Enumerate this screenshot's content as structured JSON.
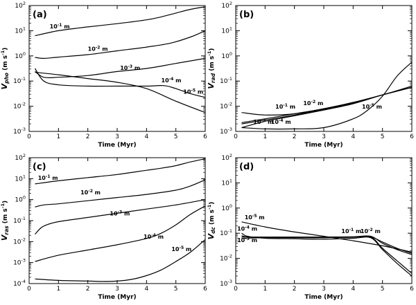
{
  "chart_data": [
    {
      "type": "line",
      "panel": "(a)",
      "ylabel_main": "V",
      "ylabel_sub": "pho",
      "ylabel_unit": "(m s",
      "ylabel_exp": "-1",
      "ylabel_close": ")",
      "xlabel": "Time (Myr)",
      "xlim": [
        0,
        6
      ],
      "ylim_log10": [
        -3,
        2
      ],
      "xticks": [
        "0",
        "1",
        "2",
        "3",
        "4",
        "5",
        "6"
      ],
      "yticks": [
        {
          "base": "10",
          "exp": "-3"
        },
        {
          "base": "10",
          "exp": "-2"
        },
        {
          "base": "10",
          "exp": "-1"
        },
        {
          "base": "10",
          "exp": "0"
        },
        {
          "base": "10",
          "exp": "1"
        },
        {
          "base": "10",
          "exp": "2"
        }
      ],
      "series": [
        {
          "name": "10^-1 m",
          "label_base": "10",
          "label_exp": "-1",
          "label_unit": "m",
          "label_at": [
            0.7,
            1.1
          ],
          "x": [
            0.2,
            1,
            2,
            3,
            4,
            4.5,
            5,
            5.5,
            6
          ],
          "y": [
            0.8,
            1.0,
            1.15,
            1.28,
            1.43,
            1.55,
            1.7,
            1.85,
            1.95
          ]
        },
        {
          "name": "10^-2 m",
          "label_base": "10",
          "label_exp": "-2",
          "label_unit": "m",
          "label_at": [
            2.0,
            0.2
          ],
          "x": [
            0.2,
            0.5,
            1,
            2,
            3,
            4,
            4.8,
            5.5,
            6
          ],
          "y": [
            -0.06,
            -0.1,
            -0.05,
            0.05,
            0.2,
            0.35,
            0.5,
            0.75,
            1.0
          ]
        },
        {
          "name": "10^-3 m",
          "label_base": "10",
          "label_exp": "-3",
          "label_unit": "m",
          "label_at": [
            3.1,
            -0.55
          ],
          "x": [
            0.2,
            0.5,
            1,
            2,
            3,
            4,
            5,
            6
          ],
          "y": [
            -0.62,
            -0.85,
            -0.85,
            -0.78,
            -0.62,
            -0.5,
            -0.3,
            -0.1
          ]
        },
        {
          "name": "10^-4 m",
          "label_base": "10",
          "label_exp": "-4",
          "label_unit": "m",
          "label_at": [
            4.5,
            -1.05
          ],
          "x": [
            0.2,
            0.5,
            1,
            2,
            3,
            4,
            4.6,
            5,
            5.5,
            6
          ],
          "y": [
            -0.5,
            -1.0,
            -1.15,
            -1.2,
            -1.2,
            -1.2,
            -1.18,
            -1.3,
            -1.5,
            -1.65
          ]
        },
        {
          "name": "10^-5 m",
          "label_base": "10",
          "label_exp": "-5",
          "label_unit": "m",
          "label_at": [
            5.25,
            -1.5
          ],
          "x": [
            0.2,
            1,
            2,
            3,
            4,
            5,
            6
          ],
          "y": [
            -0.65,
            -0.75,
            -0.9,
            -1.05,
            -1.3,
            -1.8,
            -2.25
          ]
        }
      ]
    },
    {
      "type": "line",
      "panel": "(b)",
      "ylabel_main": "V",
      "ylabel_sub": "rad",
      "ylabel_unit": "(m s",
      "ylabel_exp": "-1",
      "ylabel_close": ")",
      "xlabel": "Time (Myr)",
      "xlim": [
        0,
        6
      ],
      "ylim_log10": [
        -3,
        2
      ],
      "xticks": [
        "0",
        "1",
        "2",
        "3",
        "4",
        "5",
        "6"
      ],
      "yticks": [
        {
          "base": "10",
          "exp": "-3"
        },
        {
          "base": "10",
          "exp": "-2"
        },
        {
          "base": "10",
          "exp": "-1"
        },
        {
          "base": "10",
          "exp": "0"
        },
        {
          "base": "10",
          "exp": "1"
        },
        {
          "base": "10",
          "exp": "2"
        }
      ],
      "series": [
        {
          "name": "10^-1 m",
          "label_base": "10",
          "label_exp": "-1",
          "label_unit": "m",
          "label_at": [
            1.35,
            -2.1
          ],
          "x": [
            0.2,
            1,
            2,
            3,
            4,
            5,
            6
          ],
          "y": [
            -2.25,
            -2.35,
            -2.3,
            -2.1,
            -1.85,
            -1.55,
            -1.25
          ]
        },
        {
          "name": "10^-2 m",
          "label_base": "10",
          "label_exp": "-2",
          "label_unit": "m",
          "label_at": [
            2.3,
            -1.95
          ],
          "x": [
            0.2,
            1,
            2,
            3,
            4,
            5,
            6
          ],
          "y": [
            -2.65,
            -2.5,
            -2.3,
            -2.1,
            -1.85,
            -1.55,
            -1.2
          ]
        },
        {
          "name": "10^-3 m",
          "label_base": "10",
          "label_exp": "-3",
          "label_unit": "m",
          "label_at": [
            0.6,
            -2.7
          ],
          "x": [
            0.2,
            1,
            2,
            3,
            4,
            5,
            6
          ],
          "y": [
            -2.7,
            -2.55,
            -2.35,
            -2.12,
            -1.88,
            -1.55,
            -1.25
          ]
        },
        {
          "name": "10^-4 m",
          "label_base": "10",
          "label_exp": "-4",
          "label_unit": "m",
          "label_at": [
            1.2,
            -2.7
          ],
          "x": [
            0.2,
            1,
            2,
            3,
            4,
            5,
            6
          ],
          "y": [
            -2.85,
            -2.6,
            -2.38,
            -2.15,
            -1.9,
            -1.55,
            -1.25
          ]
        },
        {
          "name": "10^-5 m",
          "label_base": "10",
          "label_exp": "-5",
          "label_unit": "m",
          "label_at": [
            4.3,
            -2.1
          ],
          "x": [
            0.2,
            1,
            2,
            3,
            4,
            4.5,
            5,
            5.5,
            6
          ],
          "y": [
            -2.85,
            -2.9,
            -2.9,
            -2.85,
            -2.5,
            -2.15,
            -1.6,
            -0.8,
            -0.25
          ]
        }
      ]
    },
    {
      "type": "line",
      "panel": "(c)",
      "ylabel_main": "V",
      "ylabel_sub": "ras",
      "ylabel_unit": "(m s",
      "ylabel_exp": "-1",
      "ylabel_close": ")",
      "xlabel": "Time (Myr)",
      "xlim": [
        0,
        6
      ],
      "ylim_log10": [
        -4,
        2
      ],
      "xticks": [
        "0",
        "1",
        "2",
        "3",
        "4",
        "5",
        "6"
      ],
      "yticks": [
        {
          "base": "10",
          "exp": "-4"
        },
        {
          "base": "10",
          "exp": "-3"
        },
        {
          "base": "10",
          "exp": "-2"
        },
        {
          "base": "10",
          "exp": "-1"
        },
        {
          "base": "10",
          "exp": "0"
        },
        {
          "base": "10",
          "exp": "1"
        },
        {
          "base": "10",
          "exp": "2"
        }
      ],
      "series": [
        {
          "name": "10^-1 m",
          "label_base": "10",
          "label_exp": "-1",
          "label_unit": "m",
          "label_at": [
            0.3,
            0.95
          ],
          "x": [
            0.2,
            1,
            2,
            3,
            4,
            4.5,
            5,
            5.5,
            6
          ],
          "y": [
            0.75,
            0.9,
            1.05,
            1.2,
            1.4,
            1.5,
            1.62,
            1.8,
            1.95
          ]
        },
        {
          "name": "10^-2 m",
          "label_base": "10",
          "label_exp": "-2",
          "label_unit": "m",
          "label_at": [
            1.75,
            0.25
          ],
          "x": [
            0.2,
            0.5,
            1,
            2,
            3,
            4,
            5,
            5.5,
            6
          ],
          "y": [
            -0.35,
            -0.25,
            -0.2,
            -0.05,
            0.1,
            0.25,
            0.45,
            0.65,
            0.95
          ]
        },
        {
          "name": "10^-3 m",
          "label_base": "10",
          "label_exp": "-3",
          "label_unit": "m",
          "label_at": [
            2.75,
            -0.75
          ],
          "x": [
            0.2,
            0.4,
            0.6,
            1,
            2,
            3,
            4,
            5,
            6
          ],
          "y": [
            -1.65,
            -1.35,
            -1.2,
            -1.05,
            -0.85,
            -0.65,
            -0.45,
            -0.25,
            0.0
          ]
        },
        {
          "name": "10^-4 m",
          "label_base": "10",
          "label_exp": "-4",
          "label_unit": "m",
          "label_at": [
            3.9,
            -1.85
          ],
          "x": [
            0.2,
            1,
            2,
            3,
            4,
            4.5,
            5,
            5.5,
            6
          ],
          "y": [
            -2.95,
            -2.65,
            -2.4,
            -2.15,
            -1.85,
            -1.6,
            -1.2,
            -0.7,
            -0.3
          ]
        },
        {
          "name": "10^-5 m",
          "label_base": "10",
          "label_exp": "-5",
          "label_unit": "m",
          "label_at": [
            4.85,
            -2.45
          ],
          "x": [
            0.2,
            1,
            2,
            2.5,
            3,
            3.5,
            4,
            4.5,
            5,
            5.5,
            6
          ],
          "y": [
            -3.78,
            -3.85,
            -3.88,
            -3.9,
            -3.88,
            -3.8,
            -3.62,
            -3.35,
            -2.95,
            -2.5,
            -1.9
          ]
        }
      ]
    },
    {
      "type": "line",
      "panel": "(d)",
      "ylabel_main": "V",
      "ylabel_sub": "dc",
      "ylabel_unit": "(m s",
      "ylabel_exp": "-1",
      "ylabel_close": ")",
      "xlabel": "Time (Myr)",
      "xlim": [
        0,
        6
      ],
      "ylim_log10": [
        -3,
        2
      ],
      "xticks": [
        "0",
        "1",
        "2",
        "3",
        "4",
        "5",
        "6"
      ],
      "yticks": [
        {
          "base": "10",
          "exp": "-3"
        },
        {
          "base": "10",
          "exp": "-2"
        },
        {
          "base": "10",
          "exp": "-1"
        },
        {
          "base": "10",
          "exp": "0"
        },
        {
          "base": "10",
          "exp": "1"
        },
        {
          "base": "10",
          "exp": "2"
        }
      ],
      "series": [
        {
          "name": "10^-1 m",
          "label_base": "10",
          "label_exp": "-1",
          "label_unit": "m",
          "label_at": [
            3.6,
            -1.0
          ],
          "x": [
            0.2,
            1,
            2,
            3,
            4,
            4.6,
            5,
            5.5,
            6
          ],
          "y": [
            -1.15,
            -1.15,
            -1.15,
            -1.15,
            -1.15,
            -1.15,
            -1.35,
            -1.6,
            -1.8
          ]
        },
        {
          "name": "10^-2 m",
          "label_base": "10",
          "label_exp": "-2",
          "label_unit": "m",
          "label_at": [
            4.25,
            -1.0
          ],
          "x": [
            0.2,
            1,
            2,
            3,
            4,
            4.6,
            5,
            5.5,
            6
          ],
          "y": [
            -1.2,
            -1.18,
            -1.17,
            -1.16,
            -1.14,
            -1.12,
            -1.4,
            -1.65,
            -1.85
          ]
        },
        {
          "name": "10^-3 m",
          "label_base": "10",
          "label_exp": "-3",
          "label_unit": "m",
          "label_at": [
            0.05,
            -1.35
          ],
          "x": [
            0.2,
            0.4,
            1,
            2,
            3,
            4,
            4.6,
            5,
            5.5,
            6
          ],
          "y": [
            -1.1,
            -1.15,
            -1.17,
            -1.18,
            -1.18,
            -1.16,
            -1.15,
            -1.6,
            -2.1,
            -2.6
          ]
        },
        {
          "name": "10^-4 m",
          "label_base": "10",
          "label_exp": "-4",
          "label_unit": "m",
          "label_at": [
            0.05,
            -0.9
          ],
          "x": [
            0.2,
            0.4,
            1,
            2,
            3,
            4,
            4.6,
            5,
            5.5,
            6
          ],
          "y": [
            -1.0,
            -1.12,
            -1.2,
            -1.22,
            -1.24,
            -1.2,
            -1.18,
            -1.65,
            -2.2,
            -2.7
          ]
        },
        {
          "name": "10^-5 m",
          "label_base": "10",
          "label_exp": "-5",
          "label_unit": "m",
          "label_at": [
            0.3,
            -0.45
          ],
          "x": [
            0.2,
            1,
            2,
            3,
            4,
            5,
            6
          ],
          "y": [
            -0.55,
            -0.75,
            -0.95,
            -1.12,
            -1.3,
            -1.5,
            -1.75
          ]
        }
      ]
    }
  ]
}
